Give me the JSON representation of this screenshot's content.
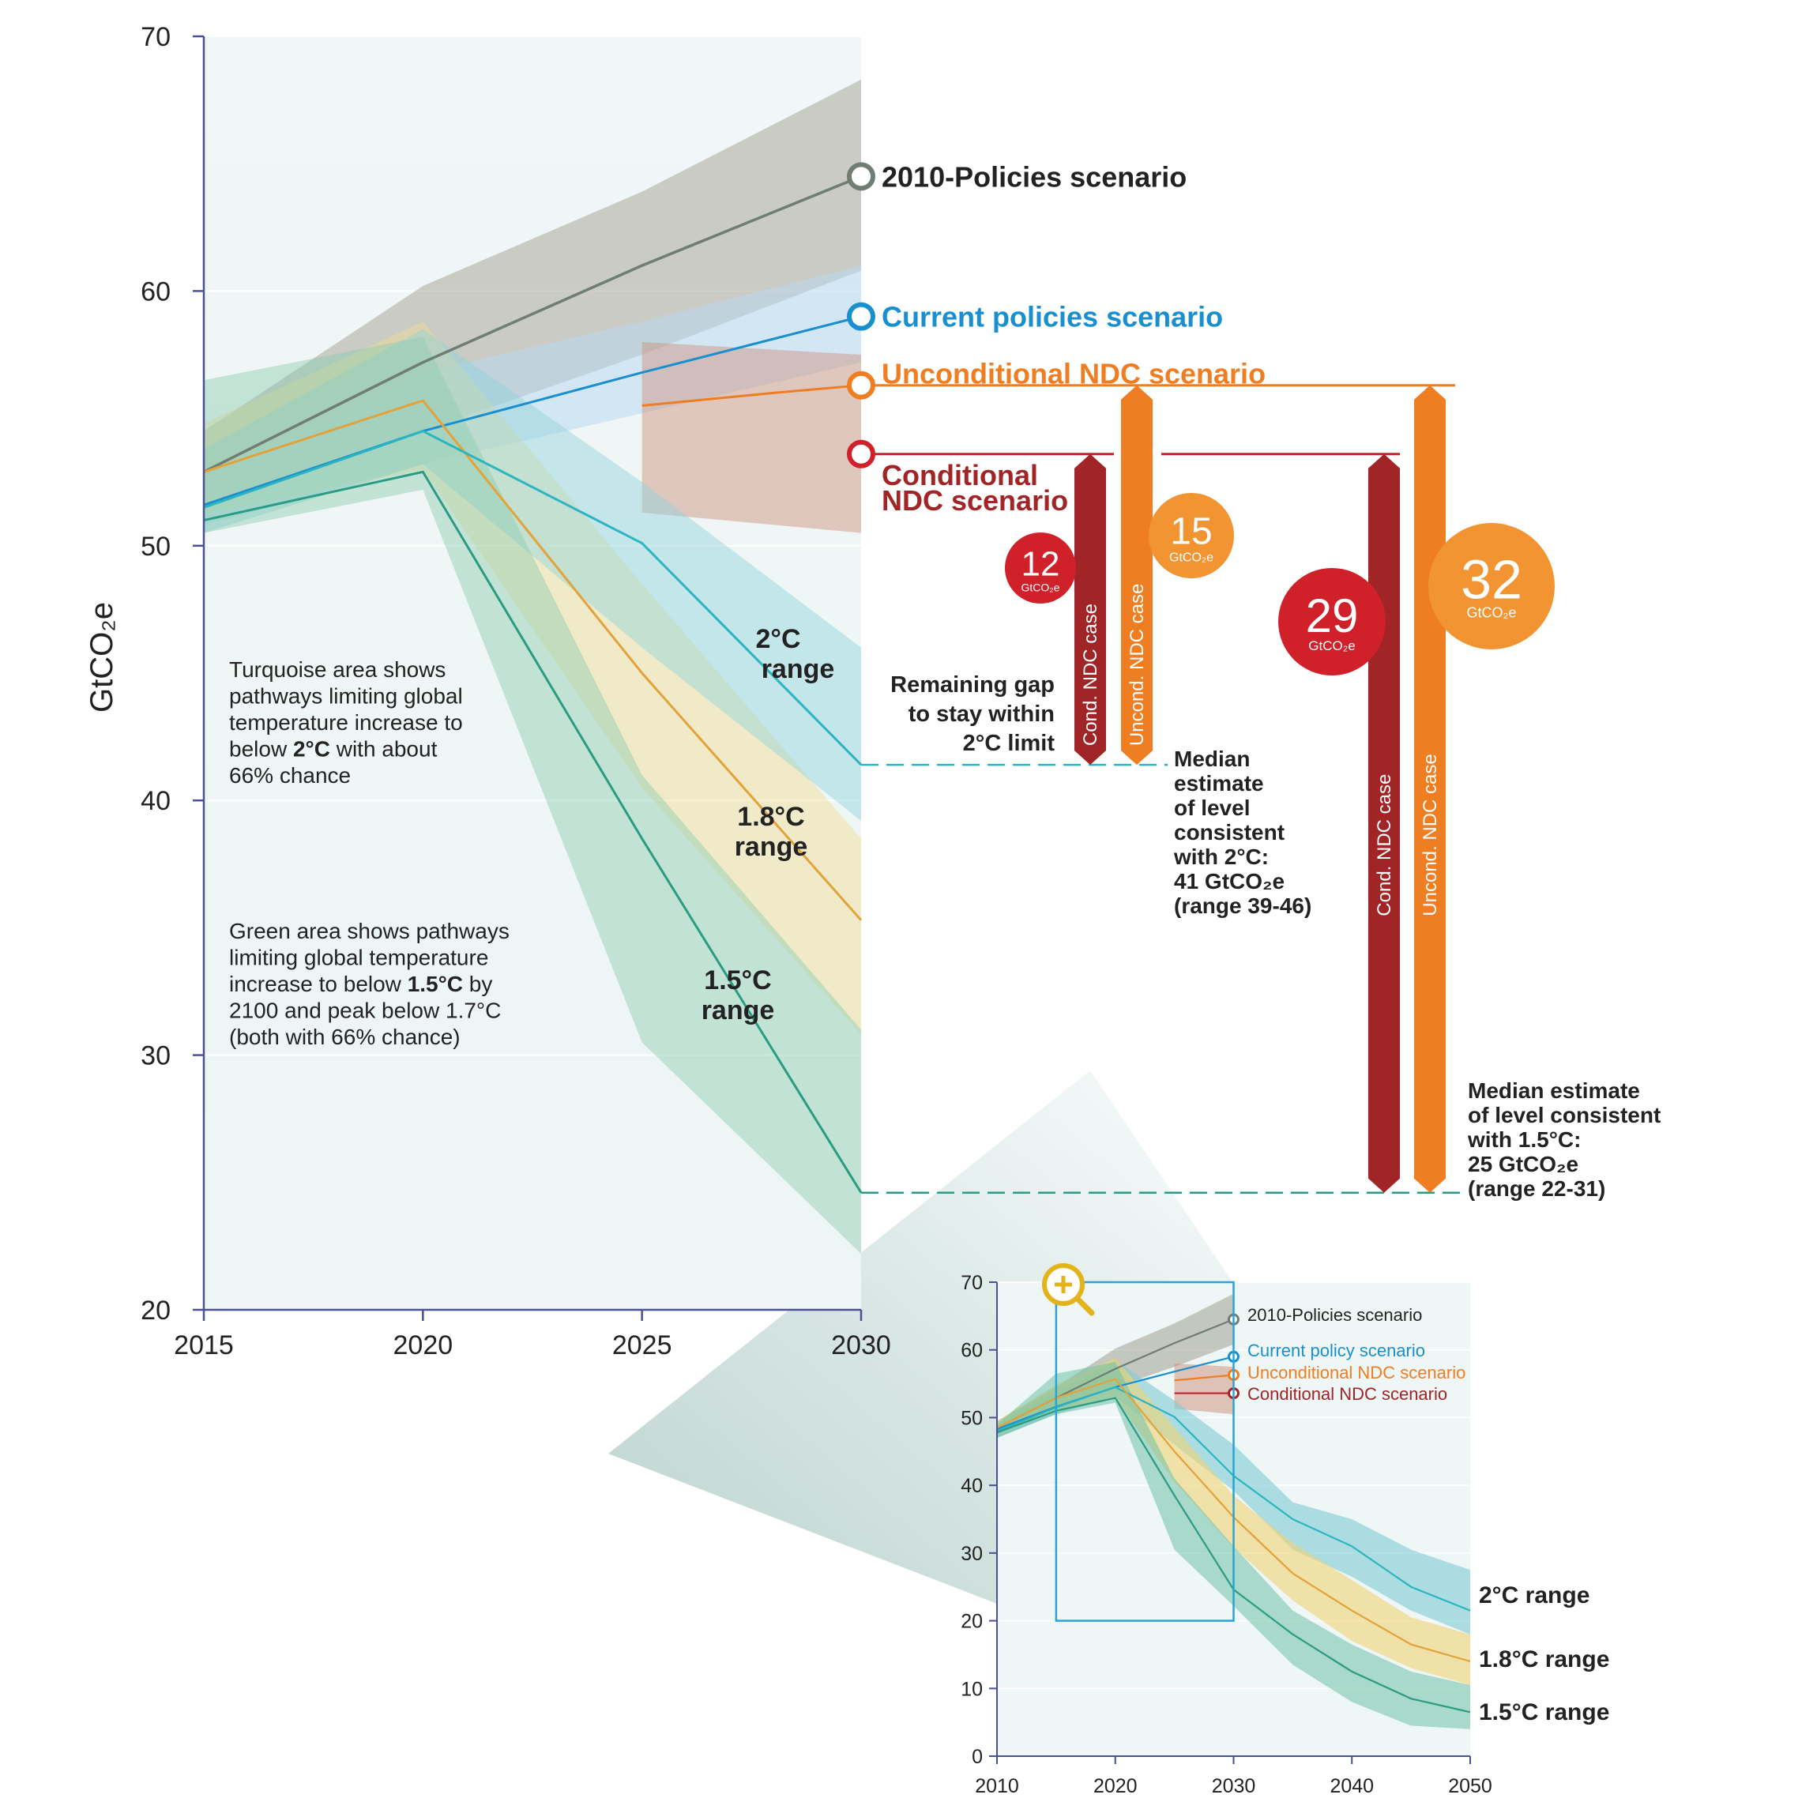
{
  "chart_data": [
    {
      "type": "area",
      "title": "",
      "xlabel": "",
      "ylabel": "GtCO₂e",
      "xlim": [
        2015,
        2030
      ],
      "ylim": [
        20,
        70
      ],
      "xticks": [
        2015,
        2020,
        2025,
        2030
      ],
      "yticks": [
        20,
        30,
        40,
        50,
        60,
        70
      ],
      "grid": true,
      "series": [
        {
          "key": "p2010",
          "name": "2010-Policies scenario",
          "color": "#6f7d74",
          "x": [
            2015,
            2020,
            2025,
            2030
          ],
          "values": [
            52.9,
            57.2,
            61.0,
            64.5
          ],
          "band_x": [
            2015,
            2020,
            2025,
            2030
          ],
          "band_low": [
            51.5,
            54.5,
            57.5,
            60.8
          ],
          "band_high": [
            54.5,
            60.2,
            63.9,
            68.3
          ]
        },
        {
          "key": "current",
          "name": "Current policies scenario",
          "color": "#1a8fd0",
          "x": [
            2015,
            2020,
            2025,
            2030
          ],
          "values": [
            51.6,
            54.5,
            56.8,
            59.0
          ],
          "band_x": [
            2015,
            2020,
            2025,
            2030
          ],
          "band_low": [
            50.8,
            53.2,
            55.2,
            57.2
          ],
          "band_high": [
            52.6,
            56.8,
            58.8,
            61.0
          ]
        },
        {
          "key": "uncond",
          "name": "Unconditional NDC scenario",
          "color": "#ef7d22",
          "x": [
            2025,
            2028,
            2030
          ],
          "values": [
            55.5,
            56.0,
            56.3
          ],
          "band_x": [
            2025,
            2030
          ],
          "band_low": [
            51.3,
            50.5
          ],
          "band_high": [
            58.0,
            57.5
          ]
        },
        {
          "key": "cond",
          "name": "Conditional NDC scenario",
          "color": "#c8202a",
          "x": [
            2025,
            2030
          ],
          "values": [
            53.6,
            53.6
          ]
        },
        {
          "key": "r18",
          "name": "1.8°C range",
          "color": "#e3a23a",
          "x": [
            2015,
            2020,
            2025,
            2030
          ],
          "values": [
            52.9,
            55.7,
            45.0,
            35.3
          ],
          "band_x": [
            2015,
            2020,
            2025,
            2030
          ],
          "band_low": [
            51.2,
            53.0,
            40.5,
            30.8
          ],
          "band_high": [
            54.8,
            58.8,
            48.5,
            38.5
          ]
        },
        {
          "key": "r2",
          "name": "2°C range",
          "color": "#2bb5c1",
          "x": [
            2015,
            2020,
            2025,
            2030
          ],
          "values": [
            51.5,
            54.5,
            50.1,
            41.4
          ],
          "band_x": [
            2015,
            2020,
            2025,
            2030
          ],
          "band_low": [
            50.5,
            53.2,
            46.0,
            39.2
          ],
          "band_high": [
            53.8,
            58.5,
            52.5,
            46.0
          ]
        },
        {
          "key": "r15",
          "name": "1.5°C range",
          "color": "#2a9c83",
          "x": [
            2015,
            2020,
            2025,
            2030
          ],
          "values": [
            51.0,
            52.9,
            38.5,
            24.6
          ],
          "band_x": [
            2015,
            2020,
            2025,
            2030
          ],
          "band_low": [
            50.5,
            52.2,
            30.5,
            22.2
          ],
          "band_high": [
            56.5,
            58.2,
            41.0,
            31.0
          ]
        }
      ],
      "markers": [
        {
          "key": "p2010",
          "year": 2030,
          "value": 64.5
        },
        {
          "key": "current",
          "year": 2030,
          "value": 59.0
        },
        {
          "key": "uncond",
          "year": 2030,
          "value": 56.3
        },
        {
          "key": "cond",
          "year": 2030,
          "value": 53.6
        }
      ],
      "range_labels": [
        {
          "key": "r2",
          "line1": "2°C",
          "line2": "range"
        },
        {
          "key": "r18",
          "line1": "1.8°C",
          "line2": "range"
        },
        {
          "key": "r15",
          "line1": "1.5°C",
          "line2": "range"
        }
      ],
      "notes": {
        "turquoise": [
          "Turquoise area shows",
          "pathways limiting global",
          "temperature increase to",
          "below ",
          "2°C",
          " with about",
          "66% chance"
        ],
        "green": [
          "Green area shows pathways",
          "limiting global temperature",
          "increase to below ",
          "1.5°C",
          " by",
          "2100 and peak below 1.7°C",
          "(both with 66% chance)"
        ]
      },
      "gap_note": [
        "Remaining gap",
        "to stay within",
        "2°C limit"
      ],
      "median_2c": {
        "value": 41.4,
        "lines": [
          "Median",
          "estimate",
          "of level",
          "consistent",
          "with 2°C:"
        ],
        "highlight": "41 GtCO₂e",
        "range": "(range 39-46)"
      },
      "median_15c": {
        "value": 24.6,
        "lines": [
          "Median estimate",
          "of level consistent",
          "with 1.5°C:"
        ],
        "highlight": "25 GtCO₂e",
        "range": "(range 22-31)"
      },
      "gaps": [
        {
          "key": "g12",
          "label": "Cond. NDC case",
          "from": 53.6,
          "to": 41.4,
          "color": "#a12426",
          "value": "12",
          "unit": "GtCO₂e",
          "circle_color": "#d0202a"
        },
        {
          "key": "g15",
          "label": "Uncond. NDC case",
          "from": 56.3,
          "to": 41.4,
          "color": "#ef7d22",
          "value": "15",
          "unit": "GtCO₂e",
          "circle_color": "#f29432"
        },
        {
          "key": "g29",
          "label": "Cond. NDC case",
          "from": 53.6,
          "to": 24.6,
          "color": "#a12426",
          "value": "29",
          "unit": "GtCO₂e",
          "circle_color": "#d0202a"
        },
        {
          "key": "g32",
          "label": "Uncond. NDC case",
          "from": 56.3,
          "to": 24.6,
          "color": "#ef7d22",
          "value": "32",
          "unit": "GtCO₂e",
          "circle_color": "#f29432"
        }
      ]
    },
    {
      "type": "area",
      "title": "",
      "xlabel": "",
      "ylabel": "",
      "xlim": [
        2010,
        2050
      ],
      "ylim": [
        0,
        70
      ],
      "xticks": [
        2010,
        2020,
        2030,
        2040,
        2050
      ],
      "yticks": [
        0,
        10,
        20,
        30,
        40,
        50,
        60,
        70
      ],
      "grid": true,
      "series": [
        {
          "key": "p2010",
          "name": "2010-Policies scenario",
          "color": "#6f7d74",
          "x": [
            2010,
            2015,
            2020,
            2025,
            2030
          ],
          "values": [
            48.5,
            52.9,
            57.2,
            61.0,
            64.5
          ],
          "band_x": [
            2010,
            2015,
            2020,
            2025,
            2030
          ],
          "band_low": [
            47.5,
            51.5,
            54.5,
            57.5,
            60.8
          ],
          "band_high": [
            49.5,
            54.5,
            60.2,
            63.9,
            68.3
          ]
        },
        {
          "key": "current",
          "name": "Current policy scenario",
          "color": "#1a8fd0",
          "x": [
            2010,
            2015,
            2020,
            2025,
            2030
          ],
          "values": [
            48.3,
            51.6,
            54.5,
            56.8,
            59.0
          ]
        },
        {
          "key": "uncond",
          "name": "Unconditional NDC scenario",
          "color": "#ef7d22",
          "x": [
            2025,
            2030
          ],
          "values": [
            55.5,
            56.3
          ],
          "band_x": [
            2025,
            2030
          ],
          "band_low": [
            51.3,
            50.5
          ],
          "band_high": [
            58.0,
            57.5
          ]
        },
        {
          "key": "cond",
          "name": "Conditional NDC scenario",
          "color": "#c8202a",
          "x": [
            2025,
            2030
          ],
          "values": [
            53.6,
            53.6
          ]
        },
        {
          "key": "r2",
          "name": "2°C range",
          "color": "#2bb5c1",
          "x": [
            2010,
            2015,
            2020,
            2025,
            2030,
            2035,
            2040,
            2045,
            2050
          ],
          "values": [
            48.0,
            51.5,
            54.5,
            50.1,
            41.4,
            35.0,
            31.0,
            25.0,
            21.5
          ],
          "band_x": [
            2010,
            2015,
            2020,
            2025,
            2030,
            2035,
            2040,
            2045,
            2050
          ],
          "band_low": [
            47.0,
            50.5,
            53.2,
            46.0,
            39.2,
            30.5,
            26.5,
            21.5,
            18.0
          ],
          "band_high": [
            49.5,
            53.8,
            58.5,
            52.5,
            46.0,
            37.5,
            35.0,
            30.5,
            27.5
          ]
        },
        {
          "key": "r18",
          "name": "1.8°C range",
          "color": "#e3a23a",
          "x": [
            2010,
            2015,
            2020,
            2025,
            2030,
            2035,
            2040,
            2045,
            2050
          ],
          "values": [
            48.5,
            52.9,
            55.7,
            45.0,
            35.3,
            27.0,
            21.5,
            16.5,
            14.0
          ],
          "band_x": [
            2010,
            2015,
            2020,
            2025,
            2030,
            2035,
            2040,
            2045,
            2050
          ],
          "band_low": [
            47.5,
            51.2,
            53.0,
            40.5,
            30.8,
            23.0,
            17.0,
            13.0,
            10.5
          ],
          "band_high": [
            49.5,
            54.8,
            58.8,
            48.5,
            38.5,
            31.5,
            26.0,
            20.5,
            18.0
          ]
        },
        {
          "key": "r15",
          "name": "1.5°C range",
          "color": "#2a9c83",
          "x": [
            2010,
            2015,
            2020,
            2025,
            2030,
            2035,
            2040,
            2045,
            2050
          ],
          "values": [
            47.8,
            51.0,
            52.9,
            38.5,
            24.6,
            18.0,
            12.5,
            8.5,
            6.5
          ],
          "band_x": [
            2010,
            2015,
            2020,
            2025,
            2030,
            2035,
            2040,
            2045,
            2050
          ],
          "band_low": [
            47.0,
            50.5,
            52.2,
            30.5,
            22.2,
            13.5,
            8.0,
            4.5,
            4.0
          ],
          "band_high": [
            49.0,
            56.5,
            58.2,
            41.0,
            31.0,
            21.5,
            16.5,
            12.5,
            10.5
          ]
        }
      ],
      "scenario_labels": [
        "2010-Policies scenario",
        "Current policy scenario",
        "Unconditional NDC scenario",
        "Conditional NDC scenario"
      ],
      "range_labels": [
        "2°C range",
        "1.8°C range",
        "1.5°C range"
      ],
      "zoom_box": {
        "x": [
          2015,
          2030
        ],
        "y": [
          20,
          70
        ]
      },
      "zoom_icon": "magnifier-plus-icon"
    }
  ]
}
